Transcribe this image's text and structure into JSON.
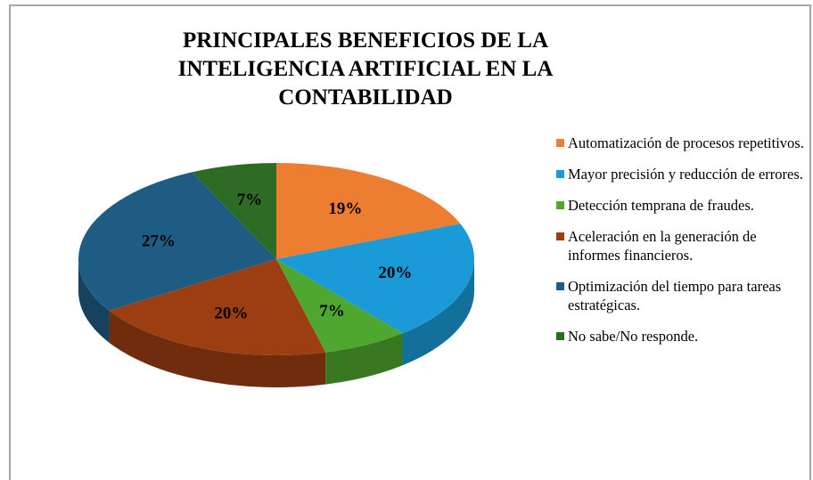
{
  "chart_data": {
    "type": "pie",
    "title": "PRINCIPALES BENEFICIOS DE LA INTELIGENCIA ARTIFICIAL EN LA CONTABILIDAD",
    "categories": [
      "Automatización de procesos repetitivos.",
      "Mayor precisión y reducción de errores.",
      "Detección temprana de fraudes.",
      "Aceleración en la generación de informes financieros.",
      "Optimización del tiempo para tareas estratégicas.",
      "No sabe/No responde."
    ],
    "values": [
      19,
      20,
      7,
      20,
      27,
      7
    ],
    "value_labels": [
      "19%",
      "20%",
      "7%",
      "20%",
      "27%",
      "7%"
    ],
    "colors": [
      "#ED7D31",
      "#1A9BD7",
      "#4EA72E",
      "#9C3E12",
      "#1F5C84",
      "#2E6B25"
    ],
    "legend": "right"
  }
}
